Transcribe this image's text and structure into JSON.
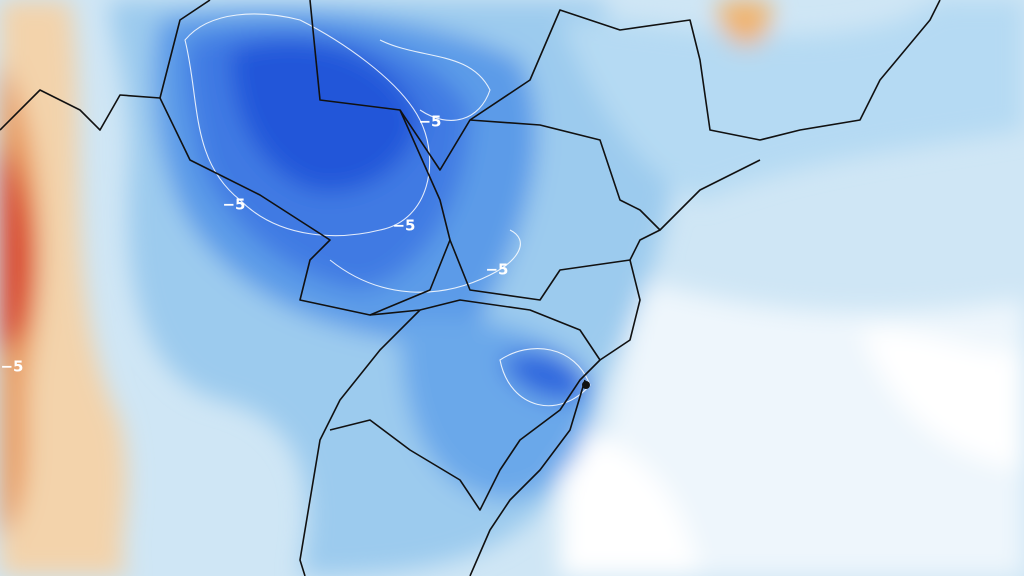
{
  "map": {
    "contour_labels": [
      "−5",
      "−5",
      "−5",
      "−5",
      "−5"
    ]
  }
}
